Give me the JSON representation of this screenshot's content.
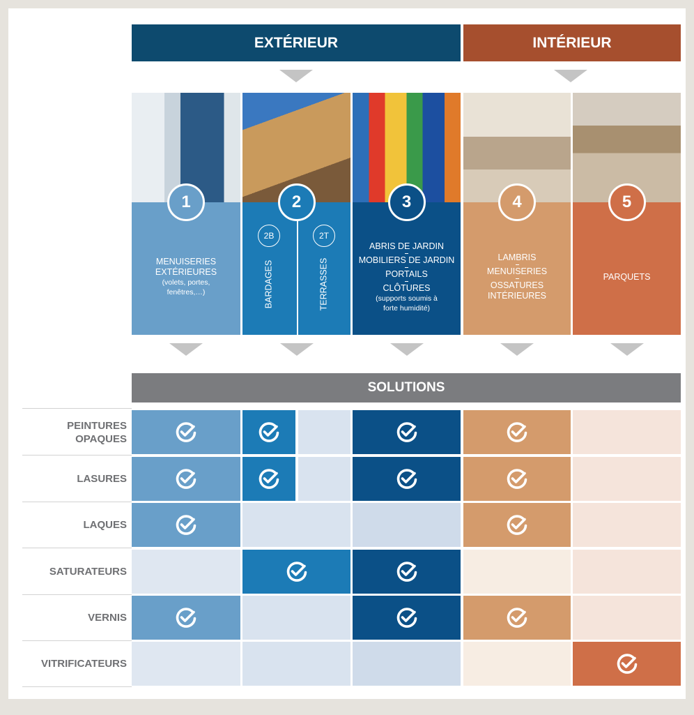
{
  "header": {
    "exterieur": "EXTÉRIEUR",
    "interieur": "INTÉRIEUR"
  },
  "columns": [
    {
      "number": 1,
      "lines": [
        "MENUISERIES EXTÉRIEURES"
      ],
      "note": "(volets, portes, fenêtres,…)"
    },
    {
      "number": 2,
      "subs": [
        {
          "number": "2B",
          "label": "BARDAGES"
        },
        {
          "number": "2T",
          "label": "TERRASSES"
        }
      ]
    },
    {
      "number": 3,
      "lines": [
        "ABRIS DE JARDIN",
        "MOBILIERS DE JARDIN",
        "PORTAILS",
        "CLÔTURES"
      ],
      "note": "(supports soumis à forte humidité)"
    },
    {
      "number": 4,
      "lines": [
        "LAMBRIS",
        "MENUISERIES",
        "OSSATURES INTÉRIEURES"
      ]
    },
    {
      "number": 5,
      "lines": [
        "PARQUETS"
      ]
    }
  ],
  "solutions": {
    "title": "SOLUTIONS",
    "rows": [
      {
        "label": "PEINTURES OPAQUES",
        "cells": [
          true,
          [
            true,
            false
          ],
          true,
          true,
          false
        ]
      },
      {
        "label": "LASURES",
        "cells": [
          true,
          [
            true,
            false
          ],
          true,
          true,
          false
        ]
      },
      {
        "label": "LAQUES",
        "cells": [
          true,
          false,
          false,
          true,
          false
        ]
      },
      {
        "label": "SATURATEURS",
        "cells": [
          false,
          true,
          true,
          false,
          false
        ]
      },
      {
        "label": "VERNIS",
        "cells": [
          true,
          false,
          true,
          true,
          false
        ]
      },
      {
        "label": "VITRIFICATEURS",
        "cells": [
          false,
          false,
          false,
          false,
          true
        ]
      }
    ]
  }
}
